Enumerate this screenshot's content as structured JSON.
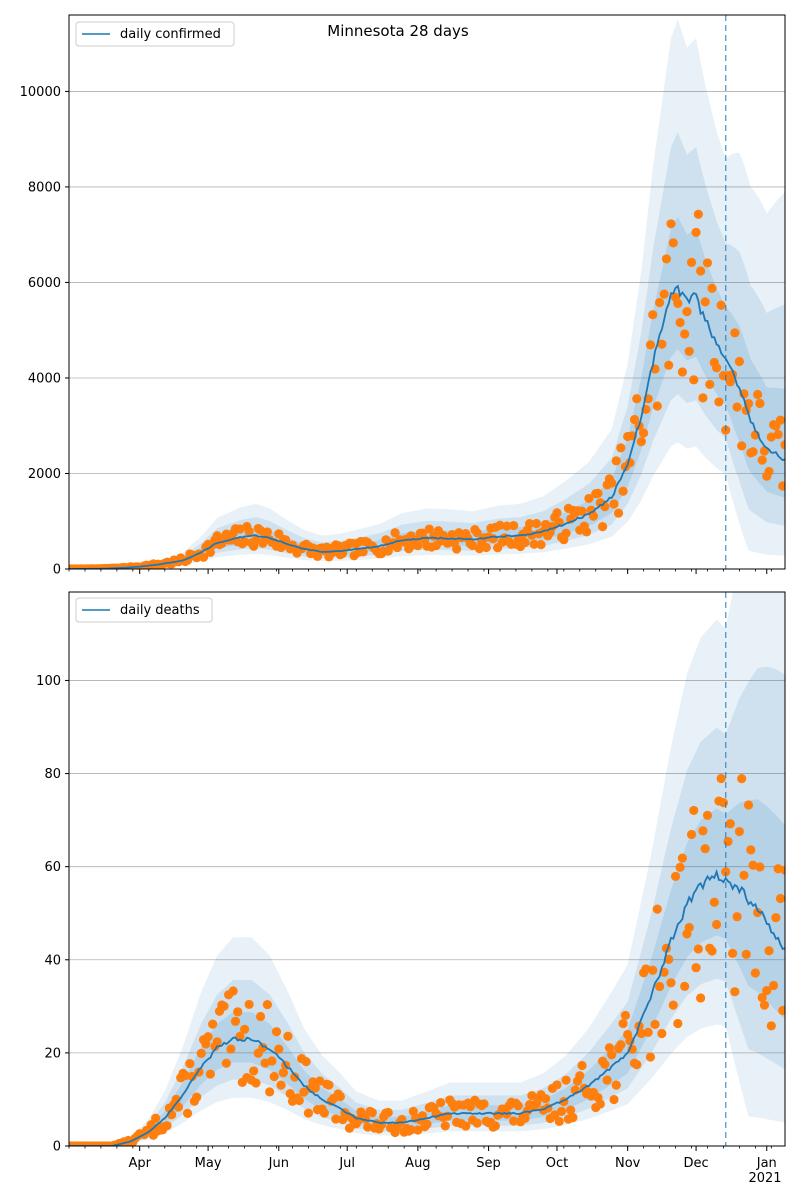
{
  "figure": {
    "title": "Minnesota 28 days",
    "forecast_date": "2020-12-14"
  },
  "chart_data": [
    {
      "type": "line",
      "series_name": "daily confirmed",
      "legend_placement": "top-left",
      "grid": "horizontal",
      "xlim": [
        "2020-03-01",
        "2021-01-09"
      ],
      "ylim": [
        0,
        11600
      ],
      "yticks": [
        0,
        2000,
        4000,
        6000,
        8000,
        10000
      ],
      "colors": {
        "line": "#1f77b4",
        "points": "#ff7f0e",
        "band": "#1f77b4",
        "vline": "#1f77b4"
      },
      "keypoints": [
        [
          "2020-03-01",
          0
        ],
        [
          "2020-03-15",
          5
        ],
        [
          "2020-03-25",
          25
        ],
        [
          "2020-04-01",
          50
        ],
        [
          "2020-04-10",
          100
        ],
        [
          "2020-04-20",
          180
        ],
        [
          "2020-04-28",
          350
        ],
        [
          "2020-05-05",
          550
        ],
        [
          "2020-05-15",
          660
        ],
        [
          "2020-05-22",
          700
        ],
        [
          "2020-05-28",
          650
        ],
        [
          "2020-06-05",
          520
        ],
        [
          "2020-06-12",
          420
        ],
        [
          "2020-06-20",
          360
        ],
        [
          "2020-06-28",
          380
        ],
        [
          "2020-07-05",
          420
        ],
        [
          "2020-07-15",
          480
        ],
        [
          "2020-07-25",
          600
        ],
        [
          "2020-08-05",
          650
        ],
        [
          "2020-08-15",
          640
        ],
        [
          "2020-08-25",
          620
        ],
        [
          "2020-09-05",
          680
        ],
        [
          "2020-09-15",
          700
        ],
        [
          "2020-09-25",
          780
        ],
        [
          "2020-10-05",
          950
        ],
        [
          "2020-10-15",
          1150
        ],
        [
          "2020-10-25",
          1500
        ],
        [
          "2020-11-01",
          2200
        ],
        [
          "2020-11-07",
          3200
        ],
        [
          "2020-11-12",
          4300
        ],
        [
          "2020-11-16",
          5000
        ],
        [
          "2020-11-20",
          5700
        ],
        [
          "2020-11-23",
          5900
        ],
        [
          "2020-11-27",
          5600
        ],
        [
          "2020-12-01",
          5700
        ],
        [
          "2020-12-05",
          5200
        ],
        [
          "2020-12-10",
          4700
        ],
        [
          "2020-12-14",
          4400
        ],
        [
          "2020-12-20",
          3800
        ],
        [
          "2020-12-25",
          3100
        ],
        [
          "2021-01-01",
          2500
        ],
        [
          "2021-01-09",
          2300
        ]
      ],
      "noise": 0.35,
      "seed": 7
    },
    {
      "type": "line",
      "series_name": "daily deaths",
      "legend_placement": "top-left",
      "grid": "horizontal",
      "xlim": [
        "2020-03-01",
        "2021-01-09"
      ],
      "ylim": [
        0,
        119
      ],
      "yticks": [
        0,
        20,
        40,
        60,
        80,
        100
      ],
      "colors": {
        "line": "#1f77b4",
        "points": "#ff7f0e",
        "band": "#1f77b4",
        "vline": "#1f77b4"
      },
      "keypoints": [
        [
          "2020-03-01",
          0
        ],
        [
          "2020-03-20",
          0
        ],
        [
          "2020-03-28",
          1
        ],
        [
          "2020-04-05",
          3
        ],
        [
          "2020-04-12",
          6
        ],
        [
          "2020-04-20",
          11
        ],
        [
          "2020-04-28",
          17
        ],
        [
          "2020-05-05",
          21
        ],
        [
          "2020-05-12",
          23
        ],
        [
          "2020-05-20",
          23
        ],
        [
          "2020-05-28",
          21
        ],
        [
          "2020-06-05",
          17
        ],
        [
          "2020-06-12",
          13
        ],
        [
          "2020-06-20",
          10
        ],
        [
          "2020-06-28",
          8
        ],
        [
          "2020-07-05",
          6
        ],
        [
          "2020-07-15",
          5
        ],
        [
          "2020-07-25",
          5
        ],
        [
          "2020-08-05",
          6
        ],
        [
          "2020-08-15",
          7
        ],
        [
          "2020-08-25",
          7
        ],
        [
          "2020-09-05",
          7
        ],
        [
          "2020-09-15",
          7
        ],
        [
          "2020-09-25",
          8
        ],
        [
          "2020-10-05",
          10
        ],
        [
          "2020-10-15",
          13
        ],
        [
          "2020-10-25",
          17
        ],
        [
          "2020-11-01",
          20
        ],
        [
          "2020-11-07",
          27
        ],
        [
          "2020-11-12",
          33
        ],
        [
          "2020-11-20",
          44
        ],
        [
          "2020-11-27",
          52
        ],
        [
          "2020-12-03",
          56
        ],
        [
          "2020-12-10",
          58
        ],
        [
          "2020-12-14",
          57
        ],
        [
          "2020-12-20",
          55
        ],
        [
          "2020-12-28",
          51
        ],
        [
          "2021-01-05",
          45
        ],
        [
          "2021-01-09",
          42
        ]
      ],
      "noise": 0.45,
      "seed": 13
    }
  ],
  "x_axis": {
    "month_labels": [
      {
        "date": "2020-04-01",
        "label": "Apr"
      },
      {
        "date": "2020-05-01",
        "label": "May"
      },
      {
        "date": "2020-06-01",
        "label": "Jun"
      },
      {
        "date": "2020-07-01",
        "label": "Jul"
      },
      {
        "date": "2020-08-01",
        "label": "Aug"
      },
      {
        "date": "2020-09-01",
        "label": "Sep"
      },
      {
        "date": "2020-10-01",
        "label": "Oct"
      },
      {
        "date": "2020-11-01",
        "label": "Nov"
      },
      {
        "date": "2020-12-01",
        "label": "Dec"
      },
      {
        "date": "2021-01-01",
        "label": "Jan"
      }
    ],
    "year_label": "2021"
  }
}
